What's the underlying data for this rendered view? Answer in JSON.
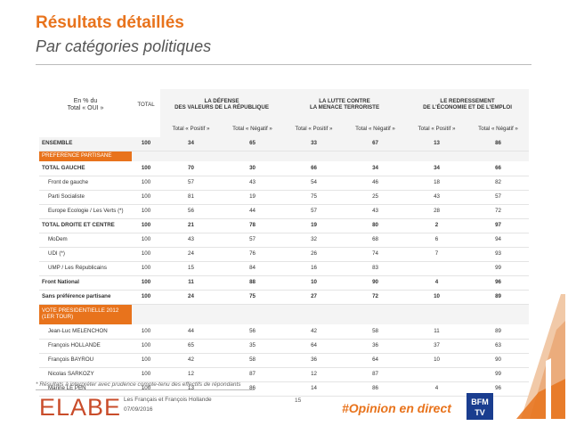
{
  "title": "Résultats détaillés",
  "subtitle": "Par catégories politiques",
  "table": {
    "header_label": [
      "En % du",
      "Total « OUI »"
    ],
    "total_header": "TOTAL",
    "groups": [
      [
        "LA DÉFENSE",
        "DES VALEURS DE LA RÉPUBLIQUE"
      ],
      [
        "LA LUTTE CONTRE",
        "LA MENACE TERRORISTE"
      ],
      [
        "LE REDRESSEMENT",
        "DE L'ÉCONOMIE ET DE L'EMPLOI"
      ]
    ],
    "subheaders": [
      "Total « Positif »",
      "Total « Négatif »",
      "Total « Positif »",
      "Total « Négatif »",
      "Total « Positif »",
      "Total « Négatif »"
    ],
    "rows": [
      {
        "label": "ENSEMBLE",
        "values": [
          "100",
          "34",
          "65",
          "33",
          "67",
          "13",
          "86"
        ],
        "style": "total"
      },
      {
        "label": "PREFERENCE PARTISANE",
        "values": [
          "",
          "",
          "",
          "",
          "",
          "",
          ""
        ],
        "style": "sec"
      },
      {
        "label": "TOTAL GAUCHE",
        "values": [
          "100",
          "70",
          "30",
          "66",
          "34",
          "34",
          "66"
        ],
        "style": "bold"
      },
      {
        "label": "Front de gauche",
        "values": [
          "100",
          "57",
          "43",
          "54",
          "46",
          "18",
          "82"
        ],
        "style": "indent"
      },
      {
        "label": "Parti Socialiste",
        "values": [
          "100",
          "81",
          "19",
          "75",
          "25",
          "43",
          "57"
        ],
        "style": "indent"
      },
      {
        "label": "Europe Ecologie / Les Verts (*)",
        "values": [
          "100",
          "56",
          "44",
          "57",
          "43",
          "28",
          "72"
        ],
        "style": "indent"
      },
      {
        "label": "TOTAL DROITE ET CENTRE",
        "values": [
          "100",
          "21",
          "78",
          "19",
          "80",
          "2",
          "97"
        ],
        "style": "bold"
      },
      {
        "label": "MoDem",
        "values": [
          "100",
          "43",
          "57",
          "32",
          "68",
          "6",
          "94"
        ],
        "style": "indent"
      },
      {
        "label": "UDI (*)",
        "values": [
          "100",
          "24",
          "76",
          "26",
          "74",
          "7",
          "93"
        ],
        "style": "indent"
      },
      {
        "label": "UMP / Les Républicains",
        "values": [
          "100",
          "15",
          "84",
          "16",
          "83",
          "",
          "99"
        ],
        "style": "indent"
      },
      {
        "label": "Front National",
        "values": [
          "100",
          "11",
          "88",
          "10",
          "90",
          "4",
          "96"
        ],
        "style": "bold"
      },
      {
        "label": "Sans préférence partisane",
        "values": [
          "100",
          "24",
          "75",
          "27",
          "72",
          "10",
          "89"
        ],
        "style": "bold"
      },
      {
        "label": "VOTE PRESIDENTIELLE 2012 (1ER TOUR)",
        "values": [
          "",
          "",
          "",
          "",
          "",
          "",
          ""
        ],
        "style": "sec sec2"
      },
      {
        "label": "Jean-Luc MELENCHON",
        "values": [
          "100",
          "44",
          "56",
          "42",
          "58",
          "11",
          "89"
        ],
        "style": "plain"
      },
      {
        "label": "François HOLLANDE",
        "values": [
          "100",
          "65",
          "35",
          "64",
          "36",
          "37",
          "63"
        ],
        "style": "plain"
      },
      {
        "label": "François BAYROU",
        "values": [
          "100",
          "42",
          "58",
          "36",
          "64",
          "10",
          "90"
        ],
        "style": "plain"
      },
      {
        "label": "Nicolas SARKOZY",
        "values": [
          "100",
          "12",
          "87",
          "12",
          "87",
          "",
          "99"
        ],
        "style": "plain"
      },
      {
        "label": "Marine LE PEN",
        "values": [
          "100",
          "13",
          "86",
          "14",
          "86",
          "4",
          "96"
        ],
        "style": "plain"
      }
    ]
  },
  "footnote": "* Résultats à interpréter avec prudence compte-tenu des effectifs de répondants",
  "footer": {
    "logo": "ELABE",
    "study": "Les Français et François Hollande",
    "date": "07/09/2016",
    "page": "15",
    "hashtag": "#Opinion en direct",
    "partner_logo": [
      "BFM",
      "TV"
    ],
    "colors": {
      "accent": "#e8731c",
      "logo": "#c94c2a",
      "partner_blue": "#1a3d8f"
    }
  }
}
